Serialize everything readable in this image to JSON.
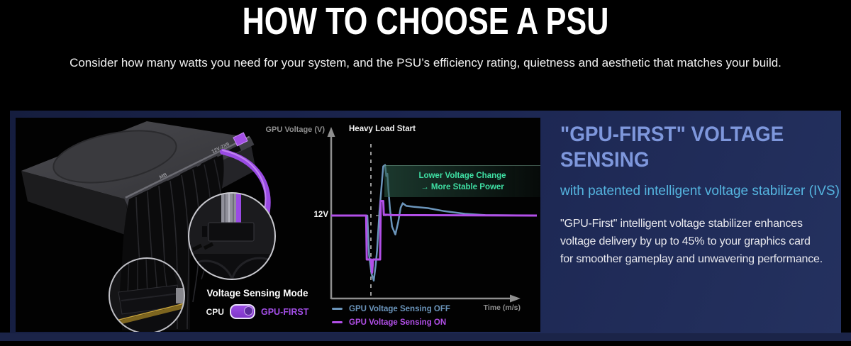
{
  "page": {
    "title": "HOW TO CHOOSE A PSU",
    "subtitle": "Consider how many watts you need for your system, and the PSU’s efficiency rating, quietness and aesthetic that matches your build."
  },
  "feature": {
    "heading": "\"GPU-FIRST\" VOLTAGE SENSING",
    "subheading": "with patented intelligent voltage stabilizer (IVS)",
    "body": "\"GPU-First\" intelligent voltage stabilizer enhances voltage delivery by up to 45% to your graphics card for smoother gameplay and unwavering performance."
  },
  "psu": {
    "port_label_mb": "MB",
    "port_label_12v": "12V-2X6",
    "mode_label": "Voltage Sensing Mode",
    "mode_off": "CPU",
    "mode_on": "GPU-FIRST",
    "mode_state": "GPU-FIRST"
  },
  "chart_data": {
    "type": "line",
    "y_axis_label": "GPU Voltage (V)",
    "x_axis_label": "Time (m/s)",
    "baseline_label": "12V",
    "baseline_value": 12,
    "event_label": "Heavy Load Start",
    "annotation": [
      "Lower Voltage Change",
      "→ More Stable Power"
    ],
    "x_range": [
      0,
      100
    ],
    "grid": false,
    "legend_position": "bottom-left",
    "series": [
      {
        "name": "GPU Voltage Sensing OFF",
        "color": "#6b95bb",
        "width": 2.5,
        "points": [
          [
            0,
            12
          ],
          [
            17.6,
            12
          ],
          [
            18.4,
            11.1
          ],
          [
            19.6,
            10.68
          ],
          [
            20.7,
            10.52
          ],
          [
            21.6,
            10.85
          ],
          [
            22.3,
            11.2
          ],
          [
            23.5,
            12.1
          ],
          [
            25.3,
            13.12
          ],
          [
            26.2,
            13.15
          ],
          [
            26.8,
            12.9
          ],
          [
            27.3,
            12.95
          ],
          [
            27.9,
            12.55
          ],
          [
            28.6,
            12.15
          ],
          [
            29.6,
            11.75
          ],
          [
            31.2,
            11.57
          ],
          [
            32.6,
            11.85
          ],
          [
            33.8,
            12.18
          ],
          [
            34.8,
            12.28
          ],
          [
            36.5,
            12.22
          ],
          [
            40,
            12.2
          ],
          [
            47,
            12.17
          ],
          [
            55,
            12.1
          ],
          [
            65,
            12.04
          ],
          [
            75,
            12.01
          ],
          [
            100,
            12
          ]
        ]
      },
      {
        "name": "GPU Voltage Sensing ON",
        "color": "#b24fe8",
        "width": 3,
        "points": [
          [
            0,
            12
          ],
          [
            17.0,
            12
          ],
          [
            17.3,
            11.0
          ],
          [
            19.4,
            11.0
          ],
          [
            19.9,
            10.7
          ],
          [
            20.4,
            11.0
          ],
          [
            23.8,
            11.0
          ],
          [
            24.1,
            12.33
          ],
          [
            25.3,
            12.33
          ],
          [
            25.6,
            12.02
          ],
          [
            30,
            12.01
          ],
          [
            100,
            12
          ]
        ]
      }
    ]
  },
  "colors": {
    "heading_blue": "#7e97dc",
    "subheading_blue": "#55b5e0",
    "annotation_green": "#3fe0a4",
    "accent_purple": "#a44fe8",
    "card_navy": "#1b2550",
    "axis_gray": "#8f8f8f"
  }
}
